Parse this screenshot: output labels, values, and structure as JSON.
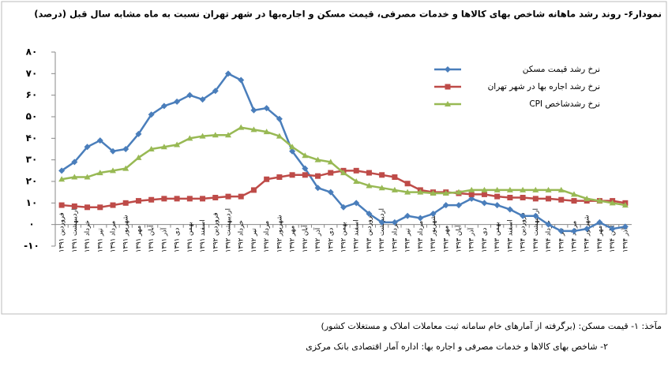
{
  "chart_data": {
    "type": "line",
    "title": "نمودار۶- روند رشد ماهانه شاخص بهای کالاها و خدمات مصرفی، قیمت مسکن و اجاره‌بها در شهر تهران نسبت به ماه مشابه سال قبل (درصد)",
    "notes": [
      "مآخذ: ۱- قیمت مسکن: (برگرفته از آمارهای خام سامانه ثبت معاملات املاک و مستغلات کشور)",
      "۲- شاخص بهای کالاها و خدمات مصرفی و اجاره بها: اداره آمار اقتصادی بانک مرکزی"
    ],
    "categories": [
      "فروردین ۱۳۹۱",
      "اردیبهشت ۱۳۹۱",
      "خرداد ۱۳۹۱",
      "تیر ۱۳۹۱",
      "مرداد ۱۳۹۱",
      "شهریور ۱۳۹۱",
      "مهر ۱۳۹۱",
      "آبان ۱۳۹۱",
      "آذر ۱۳۹۱",
      "دی ۱۳۹۱",
      "بهمن ۱۳۹۱",
      "اسفند ۱۳۹۱",
      "فروردین ۱۳۹۲",
      "اردیبهشت ۱۳۹۲",
      "خرداد ۱۳۹۲",
      "تیر ۱۳۹۲",
      "مرداد ۱۳۹۲",
      "شهریور ۱۳۹۲",
      "مهر ۱۳۹۲",
      "آبان ۱۳۹۲",
      "آذر ۱۳۹۲",
      "دی ۱۳۹۲",
      "بهمن ۱۳۹۲",
      "اسفند ۱۳۹۲",
      "فروردین ۱۳۹۳",
      "اردیبهشت ۱۳۹۳",
      "خرداد ۱۳۹۳",
      "تیر ۱۳۹۳",
      "مرداد ۱۳۹۳",
      "شهریور ۱۳۹۳",
      "مهر ۱۳۹۳",
      "آبان ۱۳۹۳",
      "آذر ۱۳۹۳",
      "دی ۱۳۹۳",
      "بهمن ۱۳۹۳",
      "اسفند ۱۳۹۳",
      "فروردین ۱۳۹۴",
      "اردیبهشت ۱۳۹۴",
      "خرداد ۱۳۹۴",
      "تیر ۱۳۹۴",
      "مرداد ۱۳۹۴",
      "شهریور ۱۳۹۴",
      "مهر ۱۳۹۴",
      "آبان ۱۳۹۴",
      "آذر ۱۳۹۴"
    ],
    "series": [
      {
        "name": "نرخ رشد قیمت مسکن",
        "color": "#4a7ebb",
        "marker": "diamond",
        "values": [
          25,
          29,
          36,
          39,
          34,
          35,
          42,
          51,
          55,
          57,
          60,
          58,
          62,
          70,
          67,
          53,
          54,
          49,
          34,
          26,
          17,
          15,
          8,
          10,
          5,
          1,
          1,
          4,
          3,
          5,
          9,
          9,
          12,
          10,
          9,
          7,
          4,
          4,
          0,
          -3,
          -3,
          -2,
          1,
          -2,
          -1
        ]
      },
      {
        "name": "نرخ رشد اجاره بها در شهر تهران",
        "color": "#be4b48",
        "marker": "square",
        "values": [
          9,
          8.5,
          8,
          8,
          9,
          10,
          11,
          11.5,
          12,
          12,
          12,
          12,
          12.5,
          13,
          13,
          16,
          21,
          22,
          23,
          23,
          22.5,
          24,
          25,
          25,
          24,
          23,
          22,
          19,
          16,
          15,
          15,
          14.5,
          14,
          14,
          13,
          12.5,
          12.5,
          12,
          12,
          11.5,
          11,
          11,
          11,
          11,
          10
        ]
      },
      {
        "name": "نرخ رشدشاخص CPI",
        "color": "#98b954",
        "marker": "triangle",
        "values": [
          21,
          22,
          22,
          24,
          25,
          26,
          31,
          35,
          36,
          37,
          40,
          41,
          41.5,
          41.5,
          45,
          44,
          43,
          41,
          36,
          32,
          30,
          29,
          24,
          20,
          18,
          17,
          16,
          15,
          15,
          14.5,
          14.5,
          15,
          16,
          16,
          16,
          16,
          16,
          16,
          16,
          16,
          14,
          12,
          11,
          10,
          9
        ]
      }
    ],
    "ylim": [
      -10,
      80
    ],
    "yticks": [
      {
        "value": -10,
        "label": "-۱۰"
      },
      {
        "value": 0,
        "label": "۰"
      },
      {
        "value": 10,
        "label": "۱۰"
      },
      {
        "value": 20,
        "label": "۲۰"
      },
      {
        "value": 30,
        "label": "۳۰"
      },
      {
        "value": 40,
        "label": "۴۰"
      },
      {
        "value": 50,
        "label": "۵۰"
      },
      {
        "value": 60,
        "label": "۶۰"
      },
      {
        "value": 70,
        "label": "۷۰"
      },
      {
        "value": 80,
        "label": "۸۰"
      }
    ],
    "grid": false,
    "legend": "top-right"
  }
}
